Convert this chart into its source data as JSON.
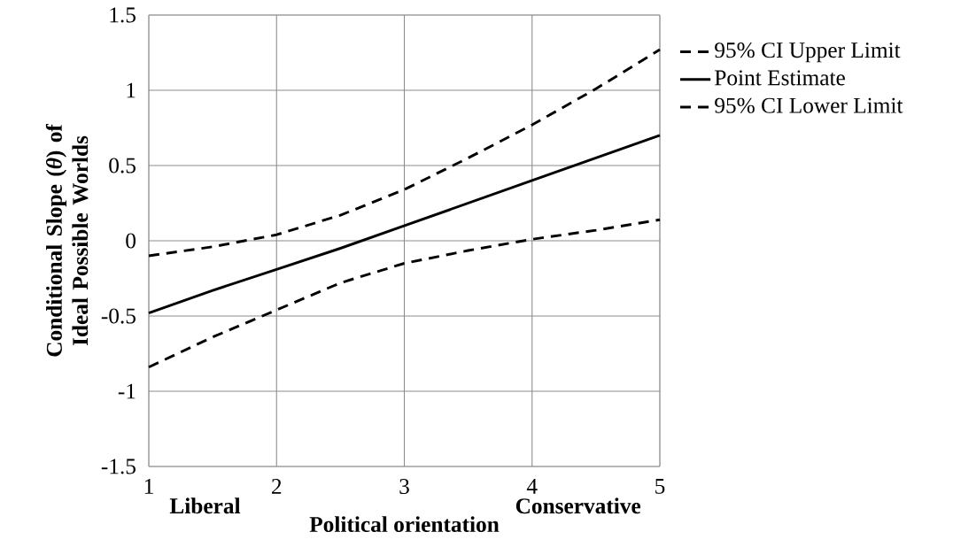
{
  "chart_data": {
    "type": "line",
    "xlabel": "Political orientation",
    "ylabel": "Conditional Slope (*θ*) of Ideal Possible Worlds",
    "annotations": [
      "Liberal",
      "Conservative"
    ],
    "x": [
      1,
      1.5,
      2,
      2.5,
      3,
      3.5,
      4,
      4.5,
      5
    ],
    "series": [
      {
        "name": "95% CI Upper Limit",
        "color": "#000000",
        "line_style": "dashed",
        "values": [
          -0.1,
          -0.04,
          0.04,
          0.17,
          0.34,
          0.55,
          0.77,
          1.01,
          1.27
        ]
      },
      {
        "name": "Point Estimate",
        "color": "#000000",
        "line_style": "solid",
        "values": [
          -0.48,
          -0.33,
          -0.19,
          -0.05,
          0.1,
          0.25,
          0.4,
          0.55,
          0.7
        ]
      },
      {
        "name": "95% CI Lower Limit",
        "color": "#000000",
        "line_style": "dashed",
        "values": [
          -0.84,
          -0.64,
          -0.46,
          -0.28,
          -0.15,
          -0.065,
          0.01,
          0.07,
          0.14
        ]
      }
    ],
    "xlim": [
      1,
      5
    ],
    "xticks": [
      1,
      2,
      3,
      4,
      5
    ],
    "ylim": [
      -1.5,
      1.5
    ],
    "yticks": [
      -1.5,
      -1,
      -0.5,
      0,
      0.5,
      1,
      1.5
    ],
    "grid": true,
    "legend": "right",
    "marker": "none"
  }
}
